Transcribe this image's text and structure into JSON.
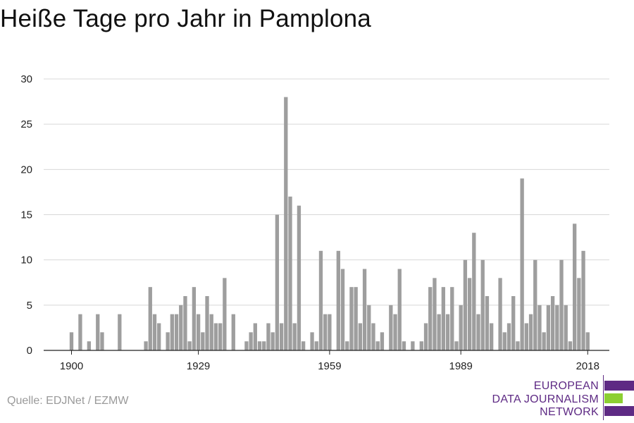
{
  "title": "Heiße Tage pro Jahr in Pamplona",
  "source": "Quelle: EDJNet / EZMW",
  "logo": {
    "lines": [
      "EUROPEAN",
      "DATA JOURNALISM",
      "NETWORK"
    ],
    "colors": [
      "#5e2a84",
      "#8ccf32",
      "#5e2a84"
    ]
  },
  "colors": {
    "bar": "#9e9e9e",
    "grid": "#d8d8d8",
    "axis": "#222222",
    "text": "#222222"
  },
  "chart_data": {
    "type": "bar",
    "title": "Heiße Tage pro Jahr in Pamplona",
    "xlabel": "",
    "ylabel": "",
    "x_ticks": [
      1900,
      1929,
      1959,
      1989,
      2018
    ],
    "y_ticks": [
      0,
      5,
      10,
      15,
      20,
      25,
      30
    ],
    "ylim": [
      0,
      30
    ],
    "xlim": [
      1894,
      2024
    ],
    "grid": true,
    "years": [
      1900,
      1901,
      1902,
      1903,
      1904,
      1905,
      1906,
      1907,
      1908,
      1909,
      1910,
      1911,
      1912,
      1913,
      1914,
      1915,
      1916,
      1917,
      1918,
      1919,
      1920,
      1921,
      1922,
      1923,
      1924,
      1925,
      1926,
      1927,
      1928,
      1929,
      1930,
      1931,
      1932,
      1933,
      1934,
      1935,
      1936,
      1937,
      1938,
      1939,
      1940,
      1941,
      1942,
      1943,
      1944,
      1945,
      1946,
      1947,
      1948,
      1949,
      1950,
      1951,
      1952,
      1953,
      1954,
      1955,
      1956,
      1957,
      1958,
      1959,
      1960,
      1961,
      1962,
      1963,
      1964,
      1965,
      1966,
      1967,
      1968,
      1969,
      1970,
      1971,
      1972,
      1973,
      1974,
      1975,
      1976,
      1977,
      1978,
      1979,
      1980,
      1981,
      1982,
      1983,
      1984,
      1985,
      1986,
      1987,
      1988,
      1989,
      1990,
      1991,
      1992,
      1993,
      1994,
      1995,
      1996,
      1997,
      1998,
      1999,
      2000,
      2001,
      2002,
      2003,
      2004,
      2005,
      2006,
      2007,
      2008,
      2009,
      2010,
      2011,
      2012,
      2013,
      2014,
      2015,
      2016,
      2017,
      2018,
      2019
    ],
    "values": [
      2,
      0,
      4,
      0,
      1,
      0,
      4,
      2,
      0,
      0,
      0,
      4,
      0,
      0,
      0,
      0,
      0,
      1,
      7,
      4,
      3,
      0,
      2,
      4,
      4,
      5,
      6,
      1,
      7,
      4,
      2,
      6,
      4,
      3,
      3,
      8,
      0,
      4,
      0,
      0,
      1,
      2,
      3,
      1,
      1,
      3,
      2,
      15,
      3,
      28,
      17,
      3,
      16,
      1,
      0,
      2,
      1,
      11,
      4,
      4,
      0,
      11,
      9,
      1,
      7,
      7,
      3,
      9,
      5,
      3,
      1,
      2,
      0,
      5,
      4,
      9,
      1,
      0,
      1,
      0,
      1,
      3,
      7,
      8,
      4,
      7,
      4,
      7,
      1,
      5,
      10,
      8,
      13,
      4,
      10,
      6,
      3,
      0,
      8,
      2,
      3,
      6,
      1,
      19,
      3,
      4,
      10,
      5,
      2,
      5,
      6,
      5,
      10,
      5,
      1,
      14,
      8,
      11,
      2,
      0
    ]
  }
}
